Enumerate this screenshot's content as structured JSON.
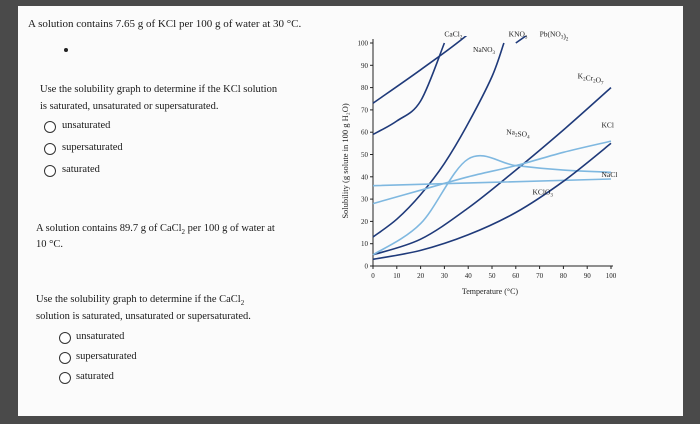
{
  "question1": {
    "statement": "A solution contains 7.65 g of KCl per 100 g of water at 30 °C.",
    "prompt_line1": "Use the solubility graph to determine if the KCl solution",
    "prompt_line2": "is saturated, unsaturated or supersaturated.",
    "options": [
      "unsaturated",
      "supersaturated",
      "saturated"
    ]
  },
  "question2": {
    "statement_part1": "A solution contains 89.7 g of CaCl",
    "statement_sub": "2",
    "statement_part2": " per 100 g of water at",
    "statement_line2": "10 °C.",
    "prompt_line1_part1": "Use the solubility graph to determine if the CaCl",
    "prompt_line1_sub": "2",
    "prompt_line2": "solution is saturated, unsaturated or supersaturated.",
    "options": [
      "unsaturated",
      "supersaturated",
      "saturated"
    ]
  },
  "colors": {
    "dark_blue": "#1f3a7a",
    "light_blue": "#7fb8e0",
    "page": "#fbfbfb",
    "frame": "#4a4a4a"
  },
  "chart_data": {
    "type": "line",
    "xlabel": "Temperature (°C)",
    "ylabel": "Solubility (g solute in 100 g H₂O)",
    "xlim": [
      0,
      100
    ],
    "ylim": [
      0,
      100
    ],
    "x_ticks": [
      "0",
      "10",
      "20",
      "30",
      "40",
      "50",
      "60",
      "70",
      "80",
      "90",
      "100"
    ],
    "y_ticks": [
      "0",
      "10",
      "20",
      "30",
      "40",
      "50",
      "60",
      "70",
      "80",
      "90",
      "100"
    ],
    "grid": false,
    "series": [
      {
        "name": "CaCl₂",
        "color": "dark_blue",
        "points": [
          [
            0,
            59
          ],
          [
            10,
            65
          ],
          [
            20,
            74
          ],
          [
            30,
            100
          ]
        ]
      },
      {
        "name": "KNO₃",
        "color": "dark_blue",
        "points": [
          [
            0,
            13
          ],
          [
            10,
            21
          ],
          [
            20,
            32
          ],
          [
            30,
            46
          ],
          [
            40,
            64
          ],
          [
            50,
            85
          ],
          [
            55,
            100
          ]
        ]
      },
      {
        "name": "Pb(NO₃)₂",
        "color": "dark_blue",
        "points": [
          [
            60,
            100
          ],
          [
            100,
            130
          ]
        ]
      },
      {
        "name": "NaNO₃",
        "color": "dark_blue",
        "points": [
          [
            0,
            73
          ],
          [
            20,
            88
          ],
          [
            40,
            104
          ],
          [
            60,
            124
          ]
        ]
      },
      {
        "name": "K₂Cr₂O₇",
        "color": "dark_blue",
        "points": [
          [
            0,
            5
          ],
          [
            20,
            12
          ],
          [
            40,
            26
          ],
          [
            60,
            43
          ],
          [
            80,
            61
          ],
          [
            100,
            80
          ]
        ]
      },
      {
        "name": "KCl",
        "color": "light_blue",
        "points": [
          [
            0,
            28
          ],
          [
            20,
            34
          ],
          [
            40,
            40
          ],
          [
            60,
            45
          ],
          [
            80,
            51
          ],
          [
            100,
            56
          ]
        ]
      },
      {
        "name": "Na₂SO₄",
        "color": "light_blue",
        "points": [
          [
            0,
            5
          ],
          [
            20,
            19
          ],
          [
            40,
            48
          ],
          [
            60,
            45
          ],
          [
            80,
            43
          ],
          [
            100,
            42
          ]
        ]
      },
      {
        "name": "NaCl",
        "color": "light_blue",
        "points": [
          [
            0,
            36
          ],
          [
            100,
            39
          ]
        ]
      },
      {
        "name": "KClO₃",
        "color": "dark_blue",
        "points": [
          [
            0,
            3
          ],
          [
            20,
            7
          ],
          [
            40,
            14
          ],
          [
            60,
            24
          ],
          [
            80,
            38
          ],
          [
            100,
            55
          ]
        ]
      }
    ],
    "labels": [
      {
        "text": "CaCl",
        "sub": "2",
        "at": [
          30,
          103
        ]
      },
      {
        "text": "KNO",
        "sub": "3",
        "at": [
          57,
          103
        ]
      },
      {
        "text": "Pb(NO",
        "sub": "3",
        "post": ")",
        "sub2": "2",
        "at": [
          70,
          103
        ]
      },
      {
        "text": "NaNO",
        "sub": "3",
        "at": [
          42,
          96
        ]
      },
      {
        "text": "K",
        "sub": "2",
        "post": "Cr",
        "sub2": "2",
        "post2": "O",
        "sub3": "7",
        "at": [
          86,
          84
        ]
      },
      {
        "text": "KCl",
        "at": [
          96,
          62
        ]
      },
      {
        "text": "Na",
        "sub": "2",
        "post": "SO",
        "sub2": "4",
        "at": [
          56,
          59
        ]
      },
      {
        "text": "NaCl",
        "at": [
          96,
          40
        ]
      },
      {
        "text": "KClO",
        "sub": "3",
        "at": [
          67,
          32
        ]
      }
    ]
  }
}
